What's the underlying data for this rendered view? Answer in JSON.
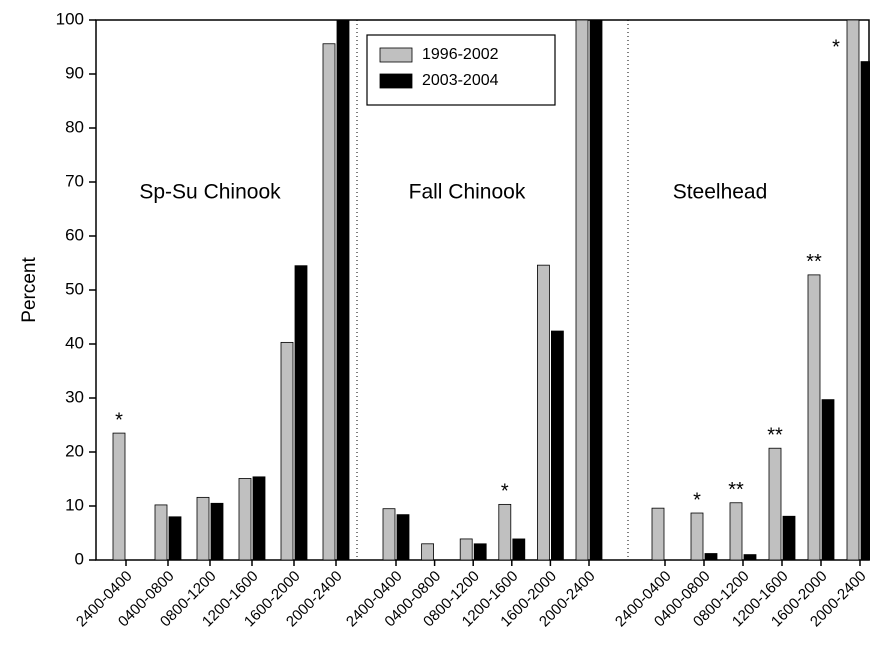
{
  "chart_data": {
    "type": "bar",
    "ylabel": "Percent",
    "ylim": [
      0,
      100
    ],
    "yticks": [
      0,
      10,
      20,
      30,
      40,
      50,
      60,
      70,
      80,
      90,
      100
    ],
    "series": [
      {
        "name": "1996-2002",
        "color": "#c0c0c0"
      },
      {
        "name": "2003-2004",
        "color": "#000000"
      }
    ],
    "panels": [
      {
        "title": "Sp-Su Chinook",
        "categories": [
          "2400-0400",
          "0400-0800",
          "0800-1200",
          "1200-1600",
          "1600-2000",
          "2000-2400"
        ],
        "series": [
          {
            "values": [
              23.5,
              10.2,
              11.6,
              15.1,
              40.3,
              95.6
            ]
          },
          {
            "values": [
              0,
              8,
              10.5,
              15.4,
              54.5,
              100
            ]
          }
        ],
        "markers": [
          "*",
          null,
          null,
          null,
          null,
          null
        ]
      },
      {
        "title": "Fall Chinook",
        "categories": [
          "2400-0400",
          "0400-0800",
          "0800-1200",
          "1200-1600",
          "1600-2000",
          "2000-2400"
        ],
        "series": [
          {
            "values": [
              9.5,
              3,
              3.9,
              10.3,
              54.6,
              100
            ]
          },
          {
            "values": [
              8.4,
              0,
              3,
              3.9,
              42.4,
              100
            ]
          }
        ],
        "markers": [
          null,
          null,
          null,
          "*",
          null,
          null
        ]
      },
      {
        "title": "Steelhead",
        "categories": [
          "2400-0400",
          "0400-0800",
          "0800-1200",
          "1200-1600",
          "1600-2000",
          "2000-2400"
        ],
        "series": [
          {
            "values": [
              9.6,
              8.7,
              10.6,
              20.7,
              52.8,
              100
            ]
          },
          {
            "values": [
              0,
              1.2,
              1,
              8.1,
              29.7,
              92.3
            ]
          }
        ],
        "markers": [
          null,
          "*",
          "**",
          "**",
          "**",
          "*"
        ]
      }
    ]
  }
}
